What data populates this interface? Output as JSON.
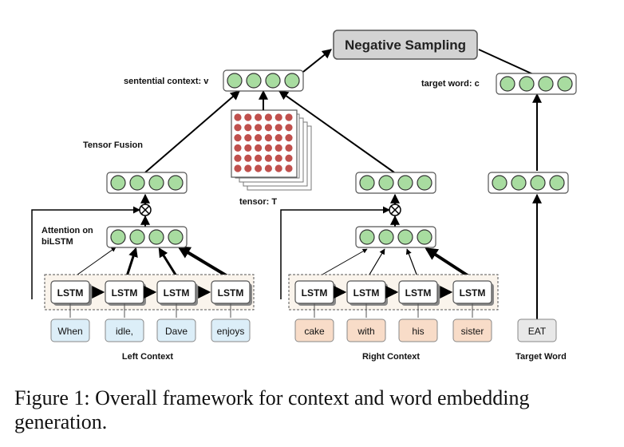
{
  "diagram": {
    "negative_sampling": "Negative Sampling",
    "sentential_context_label": "sentential context: v",
    "target_word_label": "target word: c",
    "tensor_fusion_label": "Tensor Fusion",
    "tensor_label": "tensor: T",
    "attention_label_line1": "Attention on",
    "attention_label_line2": "biLSTM",
    "lstm_label": "LSTM",
    "left_words": [
      "When",
      "idle,",
      "Dave",
      "enjoys"
    ],
    "right_words": [
      "cake",
      "with",
      "his",
      "sister"
    ],
    "target_input": "EAT",
    "left_context_label": "Left Context",
    "right_context_label": "Right Context",
    "target_word_caption": "Target Word"
  },
  "caption": "Figure 1: Overall framework for context and word embedding generation.",
  "colors": {
    "node_green": "#a8dca0",
    "left_word_fill": "#dceef8",
    "right_word_fill": "#f8dcc8",
    "target_word_fill": "#e8e8e8",
    "tensor_dot": "#c0504d",
    "box_fill": "#d3d3d3"
  }
}
